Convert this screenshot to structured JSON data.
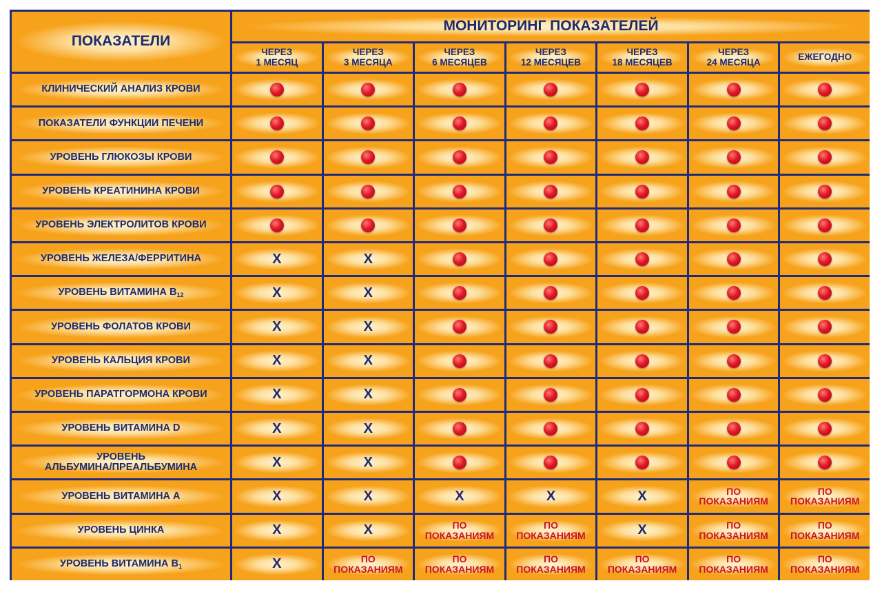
{
  "header": {
    "title": "ПОКАЗАТЕЛИ",
    "group_title": "МОНИТОРИНГ ПОКАЗАТЕЛЕЙ",
    "columns": [
      "ЧЕРЕЗ\n1 МЕСЯЦ",
      "ЧЕРЕЗ\n3 МЕСЯЦА",
      "ЧЕРЕЗ\n6 МЕСЯЦЕВ",
      "ЧЕРЕЗ\n12 МЕСЯЦЕВ",
      "ЧЕРЕЗ\n18 МЕСЯЦЕВ",
      "ЧЕРЕЗ\n24 МЕСЯЦА",
      "ЕЖЕГОДНО"
    ]
  },
  "table": {
    "rows": [
      {
        "label": "КЛИНИЧЕСКИЙ АНАЛИЗ КРОВИ",
        "cells": [
          null,
          null,
          null,
          null,
          null,
          null,
          null
        ]
      },
      {
        "label": "ПОКАЗАТЕЛИ ФУНКЦИИ ПЕЧЕНИ",
        "cells": [
          null,
          null,
          null,
          null,
          null,
          null,
          null
        ]
      },
      {
        "label": "УРОВЕНЬ ГЛЮКОЗЫ КРОВИ",
        "cells": [
          null,
          null,
          null,
          null,
          null,
          null,
          null
        ]
      },
      {
        "label": "УРОВЕНЬ КРЕАТИНИНА КРОВИ",
        "cells": [
          null,
          null,
          null,
          null,
          null,
          null,
          null
        ]
      },
      {
        "label": "УРОВЕНЬ ЭЛЕКТРОЛИТОВ КРОВИ",
        "cells": [
          null,
          null,
          null,
          null,
          null,
          null,
          null
        ]
      },
      {
        "label": "УРОВЕНЬ ЖЕЛЕЗА/ФЕРРИТИНА",
        "cells": [
          "X",
          "X",
          null,
          null,
          null,
          null,
          null
        ]
      },
      {
        "label": "УРОВЕНЬ ВИТАМИНА В",
        "sub": "12",
        "cells": [
          "X",
          "X",
          null,
          null,
          null,
          null,
          null
        ]
      },
      {
        "label": "УРОВЕНЬ ФОЛАТОВ КРОВИ",
        "cells": [
          "X",
          "X",
          null,
          null,
          null,
          null,
          null
        ]
      },
      {
        "label": "УРОВЕНЬ КАЛЬЦИЯ КРОВИ",
        "cells": [
          "X",
          "X",
          null,
          null,
          null,
          null,
          null
        ]
      },
      {
        "label": "УРОВЕНЬ ПАРАТГОРМОНА КРОВИ",
        "cells": [
          "X",
          "X",
          null,
          null,
          null,
          null,
          null
        ]
      },
      {
        "label": "УРОВЕНЬ ВИТАМИНА D",
        "cells": [
          "X",
          "X",
          null,
          null,
          null,
          null,
          null
        ]
      },
      {
        "label": "УРОВЕНЬ\nАЛЬБУМИНА/ПРЕАЛЬБУМИНА",
        "cells": [
          "X",
          "X",
          null,
          null,
          null,
          null,
          null
        ]
      },
      {
        "label": "УРОВЕНЬ ВИТАМИНА А",
        "cells": [
          "X",
          "X",
          "X",
          "X",
          "X",
          "ПО\nПОКАЗАНИЯМ",
          "ПО\nПОКАЗАНИЯМ"
        ]
      },
      {
        "label": "УРОВЕНЬ ЦИНКА",
        "cells": [
          "X",
          "X",
          "ПО\nПОКАЗАНИЯМ",
          "ПО\nПОКАЗАНИЯМ",
          "X",
          "ПО\nПОКАЗАНИЯМ",
          "ПО\nПОКАЗАНИЯМ"
        ]
      },
      {
        "label": "УРОВЕНЬ ВИТАМИНА В",
        "sub": "1",
        "cells": [
          "X",
          "ПО\nПОКАЗАНИЯМ",
          "ПО\nПОКАЗАНИЯМ",
          "ПО\nПОКАЗАНИЯМ",
          "ПО\nПОКАЗАНИЯМ",
          "ПО\nПОКАЗАНИЯМ",
          "ПО\nПОКАЗАНИЯМ"
        ]
      }
    ]
  }
}
